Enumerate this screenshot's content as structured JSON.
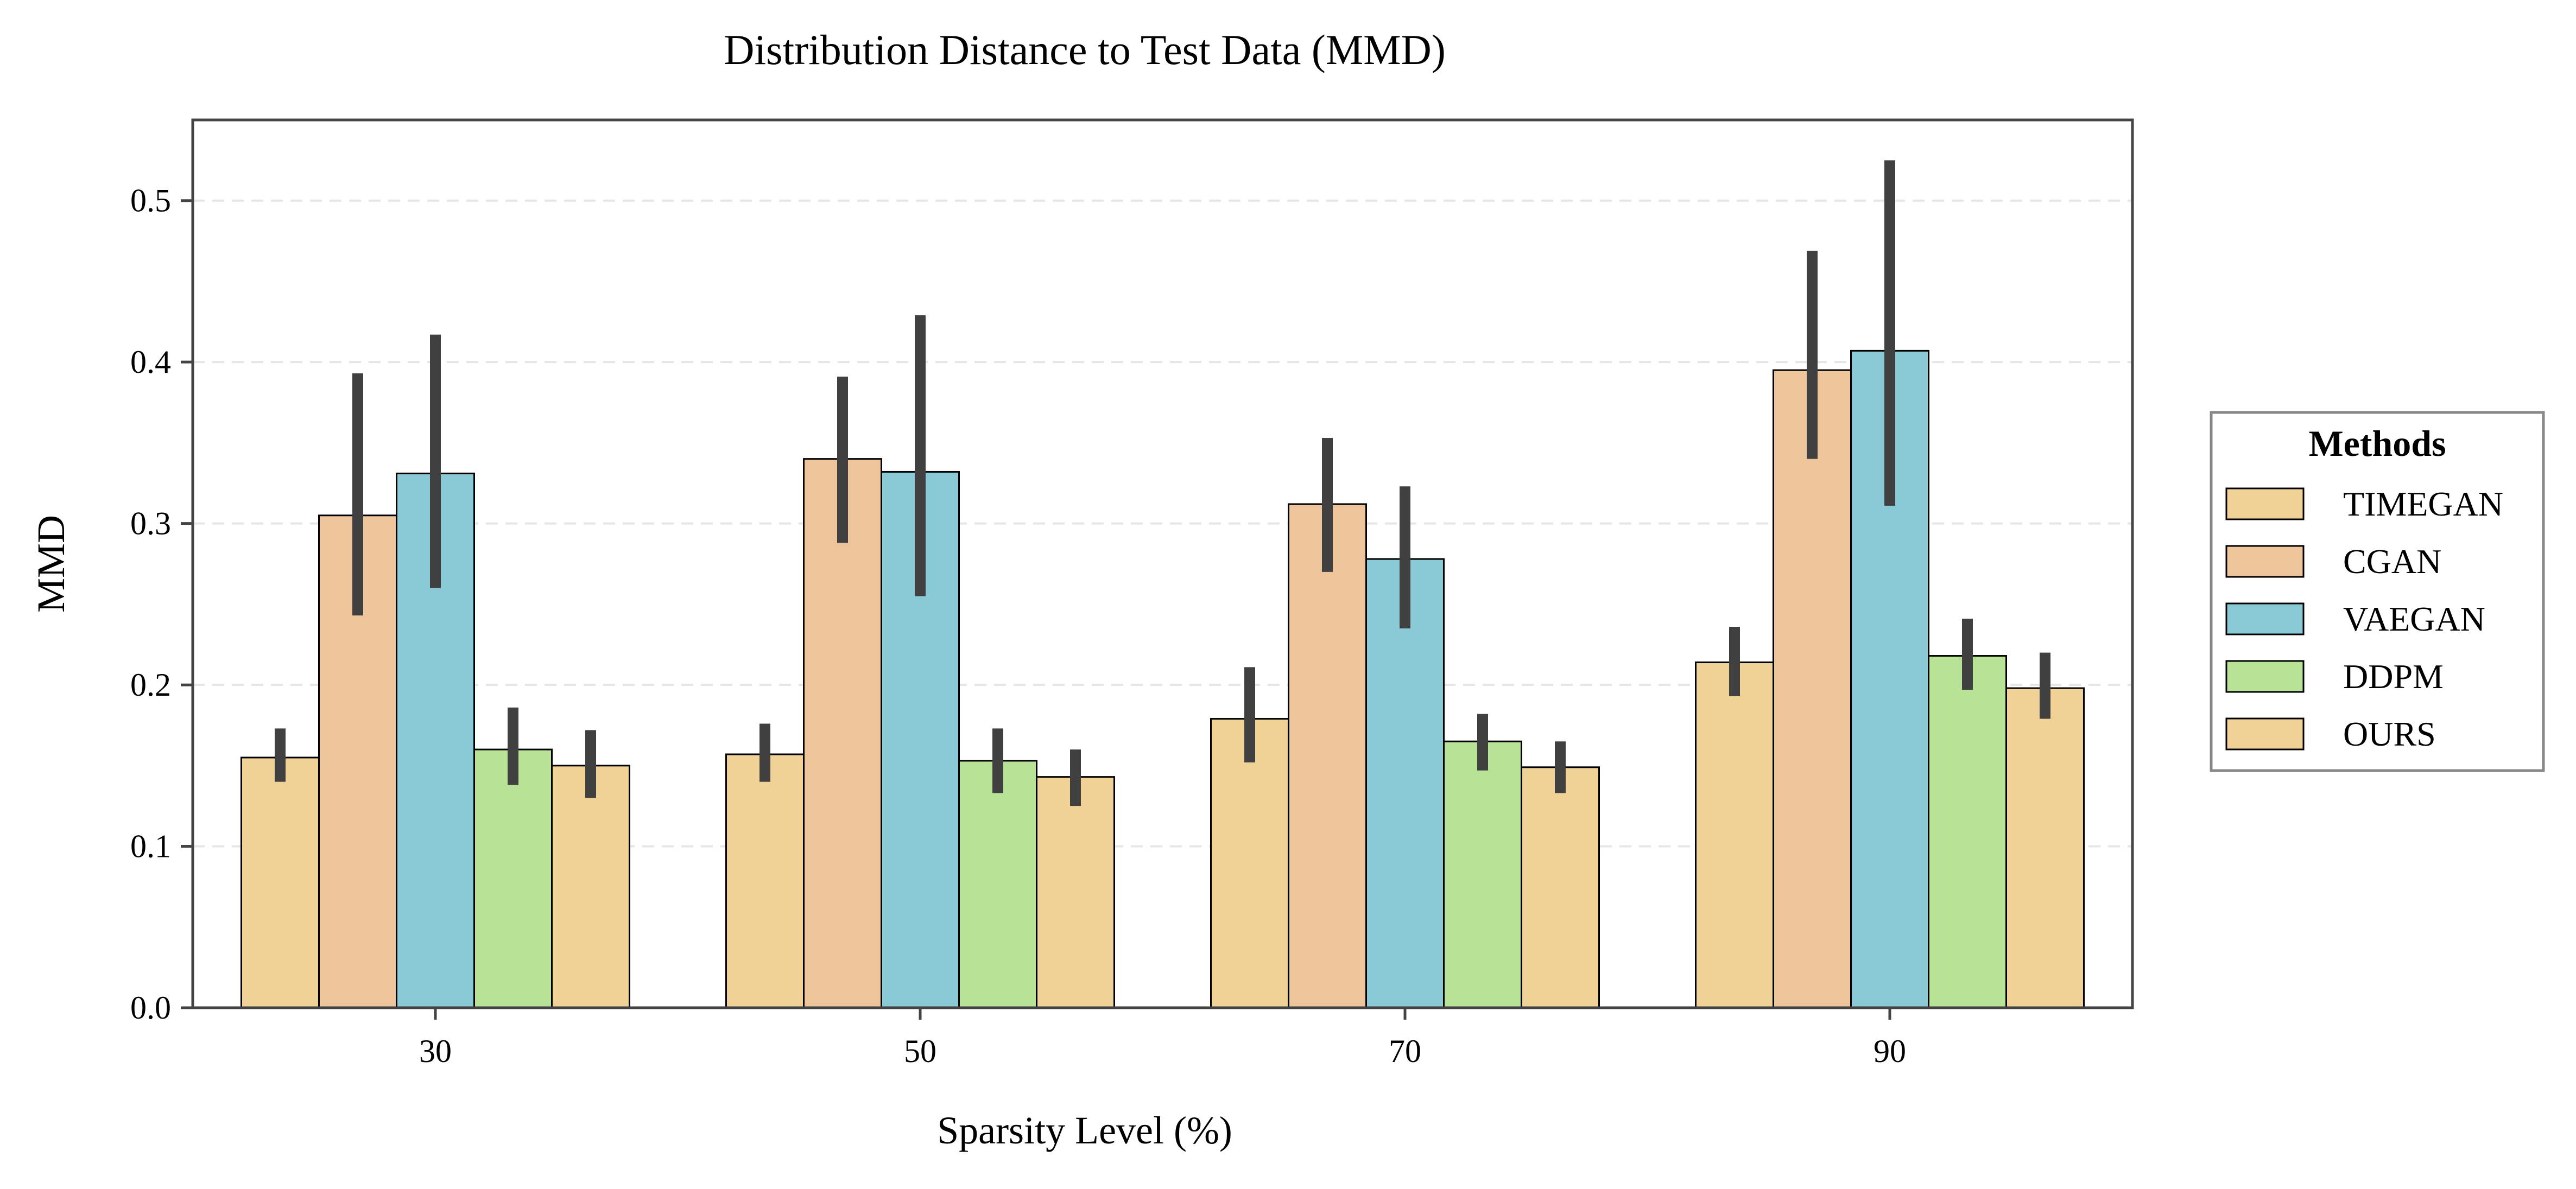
{
  "chart_data": {
    "type": "bar",
    "title": "Distribution Distance to Test Data (MMD)",
    "xlabel": "Sparsity Level (%)",
    "ylabel": "MMD",
    "categories": [
      "30",
      "50",
      "70",
      "90"
    ],
    "ylim": [
      0,
      0.55
    ],
    "yticks": [
      "0.0",
      "0.1",
      "0.2",
      "0.3",
      "0.4",
      "0.5"
    ],
    "grid": "horizontal dashed",
    "legend": {
      "title": "Methods",
      "placement": "right"
    },
    "error_bars": true,
    "series": [
      {
        "name": "TIMEGAN",
        "color": "#F0D296",
        "values": [
          0.155,
          0.157,
          0.179,
          0.214
        ],
        "err_low": [
          0.14,
          0.14,
          0.152,
          0.193
        ],
        "err_high": [
          0.173,
          0.176,
          0.211,
          0.236
        ]
      },
      {
        "name": "CGAN",
        "color": "#EEC49A",
        "values": [
          0.305,
          0.34,
          0.312,
          0.395
        ],
        "err_low": [
          0.243,
          0.288,
          0.27,
          0.34
        ],
        "err_high": [
          0.393,
          0.391,
          0.353,
          0.469
        ]
      },
      {
        "name": "VAEGAN",
        "color": "#8ACAD6",
        "values": [
          0.331,
          0.332,
          0.278,
          0.407
        ],
        "err_low": [
          0.26,
          0.255,
          0.235,
          0.311
        ],
        "err_high": [
          0.417,
          0.429,
          0.323,
          0.525
        ]
      },
      {
        "name": "DDPM",
        "color": "#B8E396",
        "values": [
          0.16,
          0.153,
          0.165,
          0.218
        ],
        "err_low": [
          0.138,
          0.133,
          0.147,
          0.197
        ],
        "err_high": [
          0.186,
          0.173,
          0.182,
          0.241
        ]
      },
      {
        "name": "OURS",
        "color": "#F0D296",
        "values": [
          0.15,
          0.143,
          0.149,
          0.198
        ],
        "err_low": [
          0.13,
          0.125,
          0.133,
          0.179
        ],
        "err_high": [
          0.172,
          0.16,
          0.165,
          0.22
        ]
      }
    ]
  }
}
